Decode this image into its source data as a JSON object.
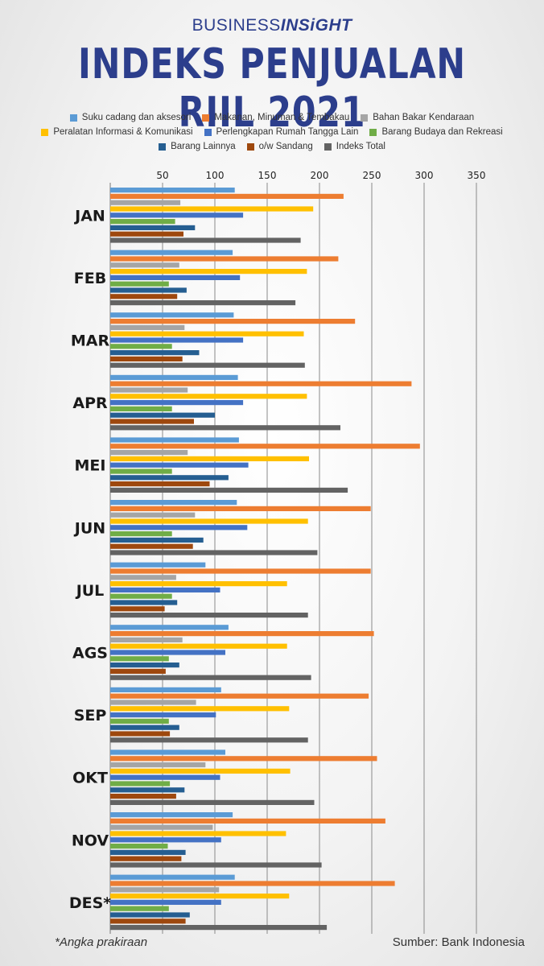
{
  "brand": {
    "part1": "BUSINESS",
    "part2": "INSiGHT"
  },
  "title": "INDEKS PENJUALAN RIIL 2021",
  "footnote": "*Angka prakiraan",
  "source": "Sumber: Bank Indonesia",
  "chart_data": {
    "type": "bar",
    "orientation": "horizontal",
    "categories": [
      "JAN",
      "FEB",
      "MAR",
      "APR",
      "MEI",
      "JUN",
      "JUL",
      "AGS",
      "SEP",
      "OKT",
      "NOV",
      "DES*"
    ],
    "xlim": [
      0,
      350
    ],
    "xticks": [
      50,
      100,
      150,
      200,
      250,
      300,
      350
    ],
    "xtick_position": "top",
    "grid": true,
    "legend_position": "top",
    "series": [
      {
        "name": "Suku cadang dan aksesori",
        "color": "#5b9bd5",
        "values": [
          119,
          117,
          118,
          122,
          123,
          121,
          91,
          113,
          106,
          110,
          117,
          119
        ]
      },
      {
        "name": "Makanan, Minuman & Tembakau",
        "color": "#ed7d31",
        "values": [
          223,
          218,
          234,
          288,
          296,
          249,
          249,
          252,
          247,
          255,
          263,
          272
        ]
      },
      {
        "name": "Bahan Bakar Kendaraan",
        "color": "#a5a5a5",
        "values": [
          67,
          66,
          71,
          74,
          74,
          81,
          63,
          69,
          82,
          91,
          98,
          104
        ]
      },
      {
        "name": "Peralatan Informasi & Komunikasi",
        "color": "#ffc000",
        "values": [
          194,
          188,
          185,
          188,
          190,
          189,
          169,
          169,
          171,
          172,
          168,
          171
        ]
      },
      {
        "name": "Perlengkapan Rumah Tangga Lain",
        "color": "#4472c4",
        "values": [
          127,
          124,
          127,
          127,
          132,
          131,
          105,
          110,
          101,
          105,
          106,
          106
        ]
      },
      {
        "name": "Barang Budaya dan Rekreasi",
        "color": "#70ad47",
        "values": [
          62,
          56,
          59,
          59,
          59,
          59,
          59,
          56,
          56,
          57,
          55,
          56
        ]
      },
      {
        "name": "Barang Lainnya",
        "color": "#255e91",
        "values": [
          81,
          73,
          85,
          100,
          113,
          89,
          64,
          66,
          66,
          71,
          72,
          76
        ]
      },
      {
        "name": "o/w Sandang",
        "color": "#9e480e",
        "values": [
          70,
          64,
          69,
          80,
          95,
          79,
          52,
          53,
          57,
          63,
          68,
          72
        ]
      },
      {
        "name": "Indeks Total",
        "color": "#636363",
        "values": [
          182,
          177,
          186,
          220,
          227,
          198,
          189,
          192,
          189,
          195,
          202,
          207
        ]
      }
    ]
  }
}
